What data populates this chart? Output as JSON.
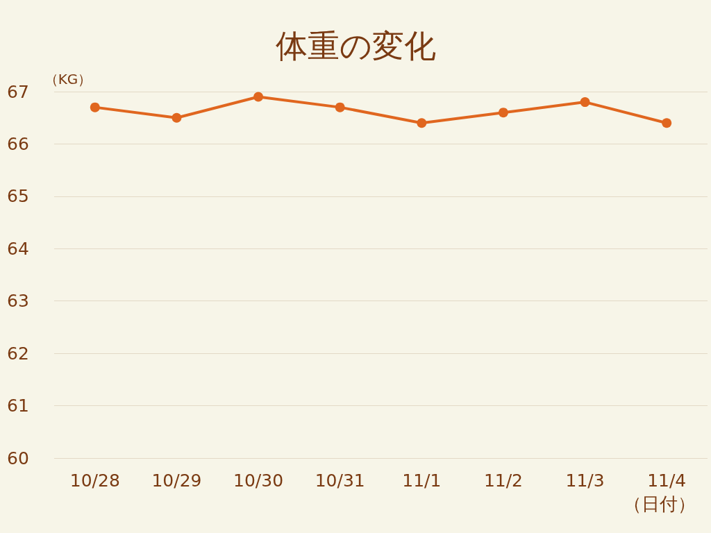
{
  "chart_data": {
    "type": "line",
    "title": "体重の変化",
    "ylabel": "（KG）",
    "xlabel": "（日付）",
    "categories": [
      "10/28",
      "10/29",
      "10/30",
      "10/31",
      "11/1",
      "11/2",
      "11/3",
      "11/4"
    ],
    "series": [
      {
        "color": "#e0661f",
        "values": [
          66.7,
          66.5,
          66.9,
          66.7,
          66.4,
          66.6,
          66.8,
          66.4
        ]
      }
    ],
    "ylim": [
      60,
      67
    ],
    "yticks": [
      60,
      61,
      62,
      63,
      64,
      65,
      66,
      67
    ],
    "grid": "y",
    "marker": "circle",
    "line_style": "solid"
  }
}
